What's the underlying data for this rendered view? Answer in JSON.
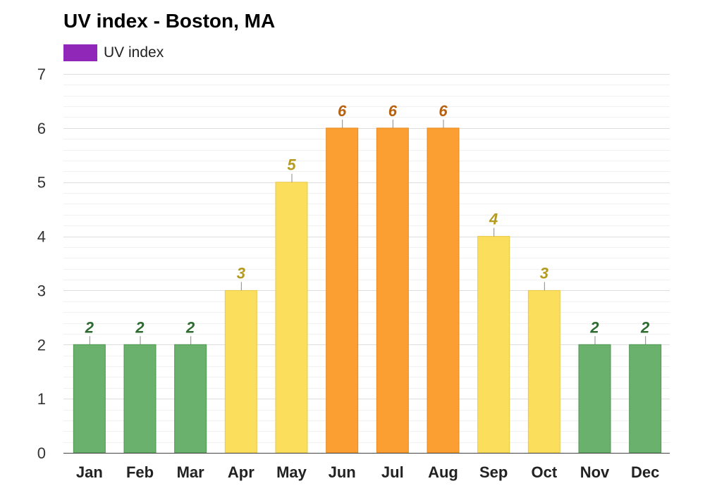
{
  "chart_data": {
    "type": "bar",
    "title": "UV index - Boston, MA",
    "categories": [
      "Jan",
      "Feb",
      "Mar",
      "Apr",
      "May",
      "Jun",
      "Jul",
      "Aug",
      "Sep",
      "Oct",
      "Nov",
      "Dec"
    ],
    "series": [
      {
        "name": "UV index",
        "values": [
          2,
          2,
          2,
          3,
          5,
          6,
          6,
          6,
          4,
          3,
          2,
          2
        ],
        "legend_color": "#9127B8"
      }
    ],
    "value_labels": [
      "2",
      "2",
      "2",
      "3",
      "5",
      "6",
      "6",
      "6",
      "4",
      "3",
      "2",
      "2"
    ],
    "y_ticks": [
      "0",
      "1",
      "2",
      "3",
      "4",
      "5",
      "6",
      "7"
    ],
    "ylim": [
      0,
      7
    ],
    "xlabel": "",
    "ylabel": "",
    "legend_position": "top-left",
    "grid": true,
    "color_levels": {
      "low": {
        "max": 2,
        "fill": "#69B16C",
        "border": "#4E9651",
        "label": "#2E6B31"
      },
      "moderate": {
        "max": 5,
        "fill": "#FCDE5D",
        "border": "#E8C94A",
        "label": "#B59A20"
      },
      "high": {
        "max": 7,
        "fill": "#FB9F33",
        "border": "#E88B1F",
        "label": "#B86210"
      }
    }
  }
}
